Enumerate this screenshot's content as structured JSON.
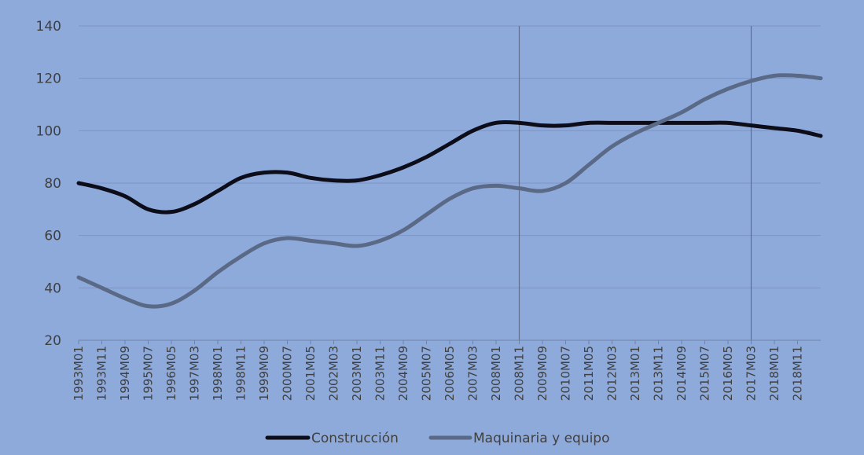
{
  "chart_data": {
    "type": "line",
    "title": "",
    "xlabel": "",
    "ylabel": "",
    "ylim": [
      20,
      140
    ],
    "yticks": [
      20,
      40,
      60,
      80,
      100,
      120,
      140
    ],
    "grid": true,
    "legend_position": "bottom",
    "x_tick_labels": [
      "1993M01",
      "1993M11",
      "1994M09",
      "1995M07",
      "1996M05",
      "1997M03",
      "1998M01",
      "1998M11",
      "1999M09",
      "2000M07",
      "2001M05",
      "2002M03",
      "2003M01",
      "2003M11",
      "2004M09",
      "2005M07",
      "2006M05",
      "2007M03",
      "2008M01",
      "2008M11",
      "2009M09",
      "2010M07",
      "2011M05",
      "2012M03",
      "2013M01",
      "2013M11",
      "2014M09",
      "2015M07",
      "2016M05",
      "2017M03",
      "2018M01",
      "2018M11"
    ],
    "x_points": [
      "1993M01",
      "1993M11",
      "1994M09",
      "1995M07",
      "1996M05",
      "1997M03",
      "1998M01",
      "1998M11",
      "1999M09",
      "2000M07",
      "2001M05",
      "2002M03",
      "2003M01",
      "2003M11",
      "2004M09",
      "2005M07",
      "2006M05",
      "2007M03",
      "2008M01",
      "2008M11",
      "2009M09",
      "2010M07",
      "2011M05",
      "2012M03",
      "2013M01",
      "2013M11",
      "2014M09",
      "2015M07",
      "2016M05",
      "2017M03",
      "2018M01",
      "2018M11",
      "2019M09"
    ],
    "vertical_markers": [
      "2008M11",
      "2017M03"
    ],
    "series": [
      {
        "name": "Construcción",
        "color": "#0d0d1a",
        "values": [
          80,
          78,
          75,
          70,
          69,
          72,
          77,
          82,
          84,
          84,
          82,
          81,
          81,
          83,
          86,
          90,
          95,
          100,
          103,
          103,
          102,
          102,
          103,
          103,
          103,
          103,
          103,
          103,
          103,
          102,
          101,
          100,
          98
        ]
      },
      {
        "name": "Maquinaria y equipo",
        "color": "#5a6a86",
        "values": [
          44,
          40,
          36,
          33,
          34,
          39,
          46,
          52,
          57,
          59,
          58,
          57,
          56,
          58,
          62,
          68,
          74,
          78,
          79,
          78,
          77,
          80,
          87,
          94,
          99,
          103,
          107,
          112,
          116,
          119,
          121,
          121,
          120
        ]
      }
    ]
  }
}
